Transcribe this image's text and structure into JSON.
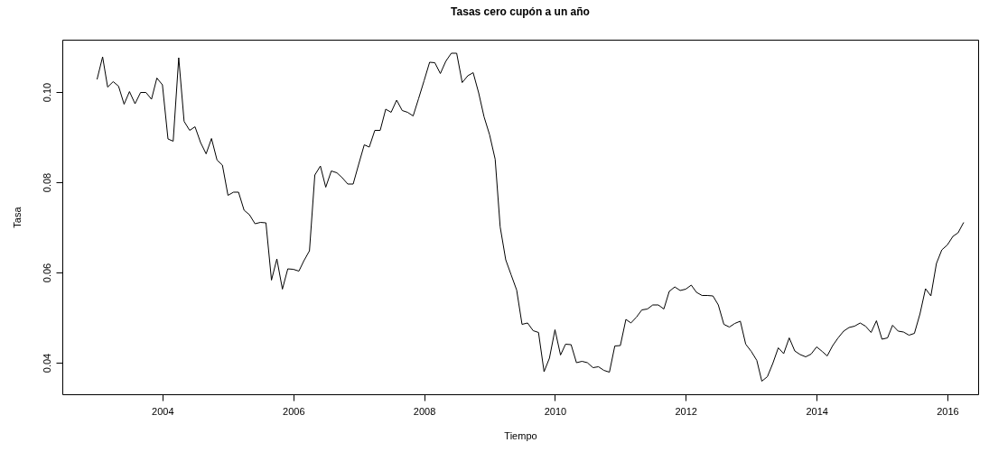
{
  "chart_data": {
    "type": "line",
    "title": "Tasas cero cupón a un año",
    "xlabel": "Tiempo",
    "ylabel": "Tasa",
    "x": [
      "2003-01",
      "2003-02",
      "2003-03",
      "2003-04",
      "2003-05",
      "2003-06",
      "2003-07",
      "2003-08",
      "2003-09",
      "2003-10",
      "2003-11",
      "2003-12",
      "2004-01",
      "2004-02",
      "2004-03",
      "2004-04",
      "2004-05",
      "2004-06",
      "2004-07",
      "2004-08",
      "2004-09",
      "2004-10",
      "2004-11",
      "2004-12",
      "2005-01",
      "2005-02",
      "2005-03",
      "2005-04",
      "2005-05",
      "2005-06",
      "2005-07",
      "2005-08",
      "2005-09",
      "2005-10",
      "2005-11",
      "2005-12",
      "2006-01",
      "2006-02",
      "2006-03",
      "2006-04",
      "2006-05",
      "2006-06",
      "2006-07",
      "2006-08",
      "2006-09",
      "2006-10",
      "2006-11",
      "2006-12",
      "2007-01",
      "2007-02",
      "2007-03",
      "2007-04",
      "2007-05",
      "2007-06",
      "2007-07",
      "2007-08",
      "2007-09",
      "2007-10",
      "2007-11",
      "2007-12",
      "2008-01",
      "2008-02",
      "2008-03",
      "2008-04",
      "2008-05",
      "2008-06",
      "2008-07",
      "2008-08",
      "2008-09",
      "2008-10",
      "2008-11",
      "2008-12",
      "2009-01",
      "2009-02",
      "2009-03",
      "2009-04",
      "2009-05",
      "2009-06",
      "2009-07",
      "2009-08",
      "2009-09",
      "2009-10",
      "2009-11",
      "2009-12",
      "2010-01",
      "2010-02",
      "2010-03",
      "2010-04",
      "2010-05",
      "2010-06",
      "2010-07",
      "2010-08",
      "2010-09",
      "2010-10",
      "2010-11",
      "2010-12",
      "2011-01",
      "2011-02",
      "2011-03",
      "2011-04",
      "2011-05",
      "2011-06",
      "2011-07",
      "2011-08",
      "2011-09",
      "2011-10",
      "2011-11",
      "2011-12",
      "2012-01",
      "2012-02",
      "2012-03",
      "2012-04",
      "2012-05",
      "2012-06",
      "2012-07",
      "2012-08",
      "2012-09",
      "2012-10",
      "2012-11",
      "2012-12",
      "2013-01",
      "2013-02",
      "2013-03",
      "2013-04",
      "2013-05",
      "2013-06",
      "2013-07",
      "2013-08",
      "2013-09",
      "2013-10",
      "2013-11",
      "2013-12",
      "2014-01",
      "2014-02",
      "2014-03",
      "2014-04",
      "2014-05",
      "2014-06",
      "2014-07",
      "2014-08",
      "2014-09",
      "2014-10",
      "2014-11",
      "2014-12",
      "2015-01",
      "2015-02",
      "2015-03",
      "2015-04",
      "2015-05",
      "2015-06",
      "2015-07",
      "2015-08",
      "2015-09",
      "2015-10",
      "2015-11",
      "2015-12",
      "2016-01",
      "2016-02",
      "2016-03",
      "2016-04"
    ],
    "series": [
      {
        "color": "#000000",
        "values": [
          0.1028,
          0.1078,
          0.1011,
          0.1023,
          0.1013,
          0.0973,
          0.1001,
          0.0974,
          0.0999,
          0.0999,
          0.0984,
          0.1031,
          0.1016,
          0.0896,
          0.0891,
          0.1076,
          0.0935,
          0.0915,
          0.0923,
          0.0888,
          0.0863,
          0.0897,
          0.0849,
          0.0838,
          0.0771,
          0.0778,
          0.0778,
          0.0738,
          0.0728,
          0.0708,
          0.0711,
          0.071,
          0.0583,
          0.063,
          0.0563,
          0.0608,
          0.0607,
          0.0603,
          0.0626,
          0.0648,
          0.0816,
          0.0836,
          0.0789,
          0.0825,
          0.0821,
          0.081,
          0.0796,
          0.0796,
          0.084,
          0.0883,
          0.0878,
          0.0915,
          0.0915,
          0.0962,
          0.0955,
          0.0982,
          0.0959,
          0.0955,
          0.0947,
          0.0985,
          0.1025,
          0.1066,
          0.1065,
          0.1041,
          0.1068,
          0.1086,
          0.1086,
          0.1021,
          0.1036,
          0.1043,
          0.0998,
          0.0945,
          0.0905,
          0.0851,
          0.0701,
          0.0628,
          0.0595,
          0.0561,
          0.0485,
          0.0488,
          0.0471,
          0.0467,
          0.038,
          0.041,
          0.0473,
          0.0417,
          0.0441,
          0.044,
          0.04,
          0.0403,
          0.04,
          0.0389,
          0.0391,
          0.0383,
          0.0379,
          0.0437,
          0.0438,
          0.0496,
          0.0488,
          0.0501,
          0.0517,
          0.0519,
          0.0528,
          0.0528,
          0.0519,
          0.0558,
          0.0568,
          0.056,
          0.0563,
          0.0572,
          0.0556,
          0.0549,
          0.0549,
          0.0548,
          0.0528,
          0.0485,
          0.0479,
          0.0487,
          0.0492,
          0.0441,
          0.0425,
          0.0405,
          0.0359,
          0.0369,
          0.0398,
          0.0433,
          0.042,
          0.0455,
          0.0426,
          0.0418,
          0.0413,
          0.0419,
          0.0435,
          0.0425,
          0.0415,
          0.0438,
          0.0455,
          0.047,
          0.0478,
          0.0481,
          0.0488,
          0.0481,
          0.0467,
          0.0493,
          0.0452,
          0.0455,
          0.0483,
          0.047,
          0.0468,
          0.0461,
          0.0465,
          0.0508,
          0.0564,
          0.0548,
          0.062,
          0.065,
          0.0661,
          0.068,
          0.0688,
          0.0711
        ]
      }
    ],
    "xlim": [
      "2002-06-21",
      "2016-06-21"
    ],
    "xticks": [
      "2004",
      "2006",
      "2008",
      "2010",
      "2012",
      "2014",
      "2016"
    ],
    "ylim": [
      0.033,
      0.1116
    ],
    "yticks": [
      0.04,
      0.06,
      0.08,
      {
        "value": 0.1,
        "label": "0.10"
      }
    ],
    "grid": false,
    "marker": "none",
    "line_style": "solid"
  }
}
